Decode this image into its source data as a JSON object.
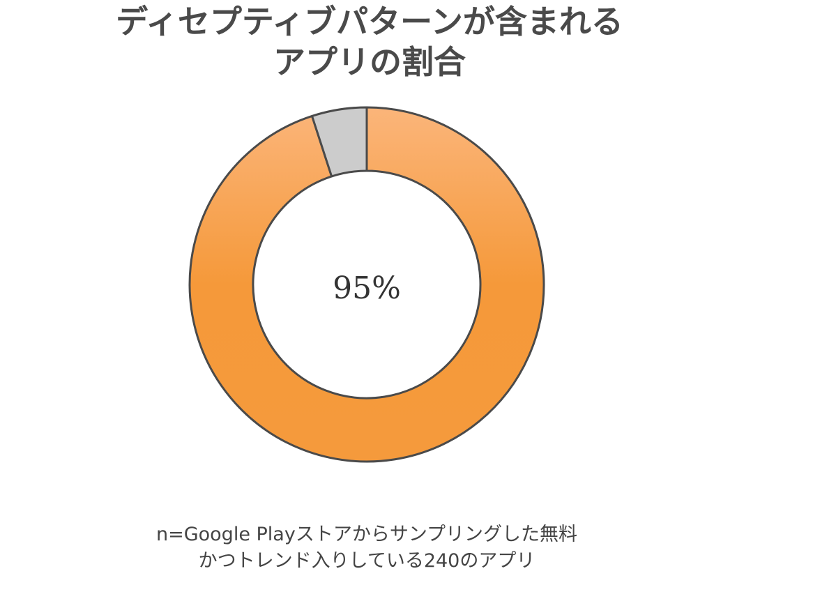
{
  "header": {
    "title_lines": [
      "ディセプティブパターンが含まれる",
      "アプリの割合"
    ]
  },
  "chart_data": {
    "type": "pie",
    "style": "donut",
    "slices": [
      {
        "value": 95,
        "color": "#f59a3c",
        "color_light": "#fbb57a"
      },
      {
        "value": 5,
        "color": "#cccccc"
      }
    ],
    "center_label": "95%",
    "stroke_color": "#4a4a4a"
  },
  "footer": {
    "note_lines": [
      "n=Google Playストアからサンプリングした無料",
      "かつトレンド入りしている240のアプリ"
    ]
  }
}
